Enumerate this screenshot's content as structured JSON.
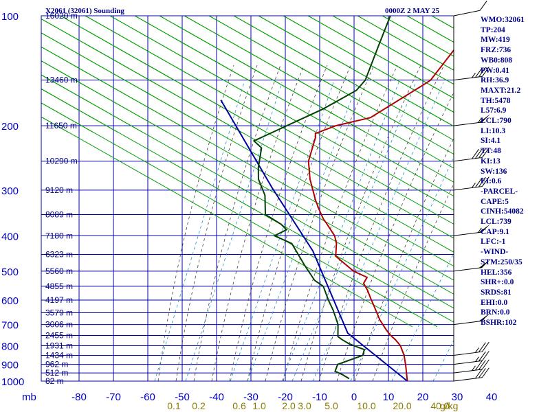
{
  "title_left": "X2061 (32061) Sounding",
  "title_right": "0000Z  2 MAY 25",
  "stats": [
    "WMO:32061",
    "TP:204",
    "MW:419",
    "FRZ:736",
    "WB0:808",
    "PW:0.41",
    "RH:36.9",
    "MAXT:21.2",
    "TH:5478",
    "L57:6.9",
    "LCL:790",
    "LI:10.3",
    "SI:4.1",
    "TT:48",
    "KI:13",
    "SW:136",
    "EI:0.6",
    "-PARCEL-",
    "CAPE:5",
    "CINH:54082",
    "LCL:739",
    "CAP:9.1",
    "LFC:-1",
    "-WIND-",
    "STM:250/35",
    "HEL:356",
    "SHR+:0.0",
    "SRDS:81",
    "EHI:0.0",
    "BRN:0.0",
    "BSHR:102"
  ],
  "axis_unit_label": "mb",
  "colors": {
    "frame": "#0000a0",
    "isotherm": "#0000a0",
    "dry_adiabat": "#00a000",
    "temperature": "#b00000",
    "dewpoint": "#004000",
    "parcel": "#0000a0",
    "moist_adiabat": "#404040",
    "mixing_ratio": "#1e8fd0",
    "mixing_label": "#8b7b00"
  },
  "chart_data": {
    "type": "skew-t",
    "pressure_levels": [
      100,
      200,
      300,
      400,
      500,
      600,
      700,
      800,
      900,
      1000
    ],
    "pressure_tick_labels": [
      "100",
      "200",
      "300",
      "400",
      "500",
      "600",
      "700",
      "800",
      "900",
      "1000"
    ],
    "temperature_ticks": [
      -80,
      -70,
      -60,
      -50,
      -40,
      -30,
      -20,
      -10,
      0,
      10,
      20,
      30,
      40
    ],
    "temperature_tick_labels": [
      "-80",
      "-70",
      "-60",
      "-50",
      "-40",
      "-30",
      "-20",
      "-10",
      "0",
      "10",
      "20",
      "30",
      "40"
    ],
    "height_labels": [
      {
        "p": 100,
        "label": "16020 m"
      },
      {
        "p": 150,
        "label": "13460 m"
      },
      {
        "p": 200,
        "label": "11650 m"
      },
      {
        "p": 250,
        "label": "10290 m"
      },
      {
        "p": 300,
        "label": "9120 m"
      },
      {
        "p": 350,
        "label": "8089 m"
      },
      {
        "p": 400,
        "label": "7180 m"
      },
      {
        "p": 450,
        "label": "6323 m"
      },
      {
        "p": 500,
        "label": "5560 m"
      },
      {
        "p": 550,
        "label": "4855 m"
      },
      {
        "p": 600,
        "label": "4197 m"
      },
      {
        "p": 650,
        "label": "3579 m"
      },
      {
        "p": 700,
        "label": "3006 m"
      },
      {
        "p": 750,
        "label": "2455 m"
      },
      {
        "p": 800,
        "label": "1931 m"
      },
      {
        "p": 850,
        "label": "1434 m"
      },
      {
        "p": 900,
        "label": "962 m"
      },
      {
        "p": 950,
        "label": "512 m"
      },
      {
        "p": 1000,
        "label": "82 m"
      }
    ],
    "mixing_ratio_labels": [
      "0.1",
      "0.2",
      "0.6",
      "1.0",
      "2.0",
      "3.0",
      "5.0",
      "10.0",
      "20.0",
      "40.0"
    ],
    "mixing_ratio_unit": "g/kg",
    "temperature": {
      "name": "",
      "points": [
        [
          15.5,
          1000
        ],
        [
          11,
          905
        ],
        [
          8,
          850
        ],
        [
          4.5,
          800
        ],
        [
          1.5,
          770
        ],
        [
          -1.5,
          745
        ],
        [
          -4,
          720
        ],
        [
          -8,
          680
        ],
        [
          -13.5,
          620
        ],
        [
          -16.5,
          590
        ],
        [
          -19,
          565
        ],
        [
          -22,
          540
        ],
        [
          -22.5,
          520
        ],
        [
          -28,
          500
        ],
        [
          -37,
          455
        ],
        [
          -40,
          420
        ],
        [
          -42.5,
          400
        ],
        [
          -48,
          370
        ],
        [
          -50,
          360
        ],
        [
          -53.5,
          340
        ],
        [
          -57,
          320
        ],
        [
          -64,
          280
        ],
        [
          -69,
          250
        ],
        [
          -73,
          215
        ],
        [
          -74,
          210
        ],
        [
          -70,
          200
        ],
        [
          -62,
          190
        ],
        [
          -55,
          155
        ],
        [
          -54,
          150
        ],
        [
          -55,
          120
        ],
        [
          -56,
          100
        ]
      ]
    },
    "dewpoint": {
      "name": "",
      "points": [
        [
          -2,
          985
        ],
        [
          -5,
          960
        ],
        [
          -8,
          940
        ],
        [
          -9,
          900
        ],
        [
          -6,
          870
        ],
        [
          -4,
          850
        ],
        [
          -5,
          820
        ],
        [
          -7,
          810
        ],
        [
          -9,
          800
        ],
        [
          -11,
          790
        ],
        [
          -14,
          770
        ],
        [
          -16,
          755
        ],
        [
          -19,
          700
        ],
        [
          -24,
          640
        ],
        [
          -28,
          600
        ],
        [
          -33,
          550
        ],
        [
          -37,
          530
        ],
        [
          -44,
          480
        ],
        [
          -53,
          420
        ],
        [
          -60,
          400
        ],
        [
          -58,
          385
        ],
        [
          -61,
          372
        ],
        [
          -68,
          350
        ],
        [
          -73,
          310
        ],
        [
          -79,
          280
        ],
        [
          -82,
          260
        ],
        [
          -86,
          230
        ],
        [
          -90,
          220
        ],
        [
          -78,
          180
        ],
        [
          -73,
          160
        ],
        [
          -73,
          150
        ],
        [
          -78,
          120
        ],
        [
          -82,
          100
        ]
      ]
    },
    "parcel": {
      "name": "",
      "points": [
        [
          15.5,
          1000
        ],
        [
          -14,
          739
        ],
        [
          -45,
          440
        ],
        [
          -73,
          295
        ],
        [
          -110,
          170
        ]
      ]
    },
    "wind_barbs": [
      {
        "p": 100,
        "dir": 240,
        "kt": 10
      },
      {
        "p": 150,
        "dir": 250,
        "kt": 35
      },
      {
        "p": 200,
        "dir": 250,
        "kt": 55
      },
      {
        "p": 250,
        "dir": 250,
        "kt": 40
      },
      {
        "p": 300,
        "dir": 250,
        "kt": 35
      },
      {
        "p": 400,
        "dir": 250,
        "kt": 55
      },
      {
        "p": 500,
        "dir": 250,
        "kt": 50
      },
      {
        "p": 700,
        "dir": 250,
        "kt": 50
      },
      {
        "p": 850,
        "dir": 250,
        "kt": 25
      },
      {
        "p": 900,
        "dir": 250,
        "kt": 25
      },
      {
        "p": 950,
        "dir": 250,
        "kt": 35
      },
      {
        "p": 1000,
        "dir": 250,
        "kt": 30
      }
    ]
  }
}
